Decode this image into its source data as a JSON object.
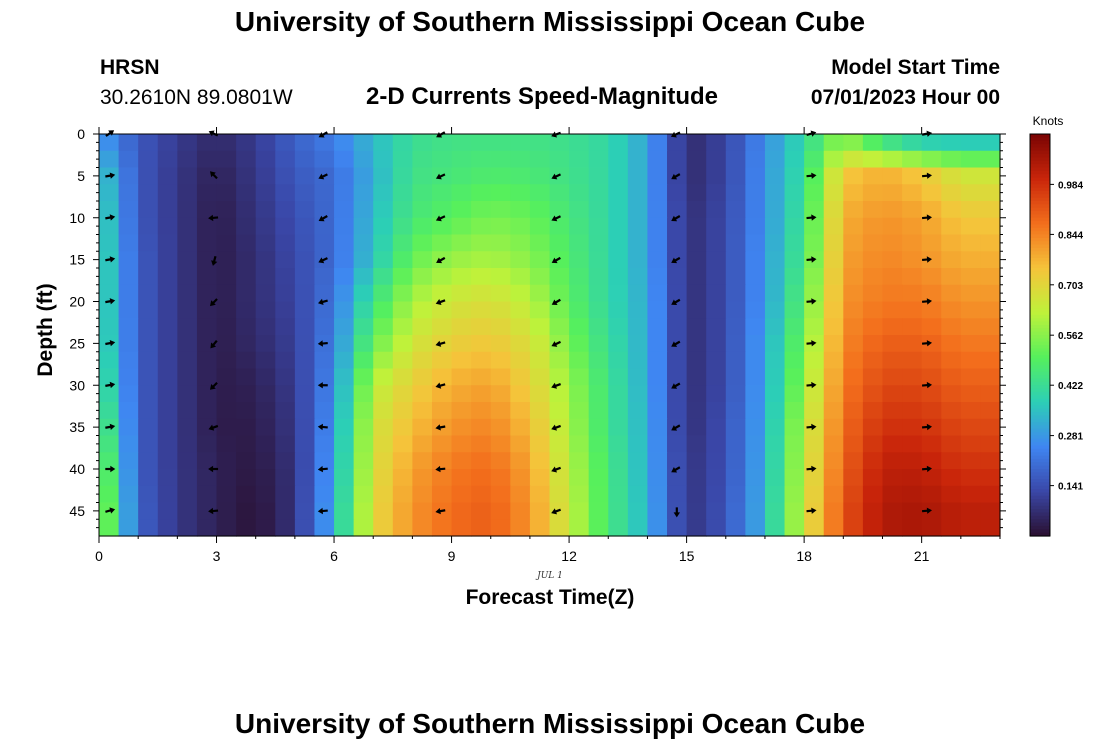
{
  "header": {
    "title": "University of Southern Mississippi Ocean Cube",
    "station": "HRSN",
    "coords": "30.2610N  89.0801W",
    "subtitle": "2-D Currents Speed-Magnitude",
    "model_start_label": "Model Start Time",
    "model_start_value": "07/01/2023 Hour 00"
  },
  "footer": {
    "title": "University of Southern Mississippi Ocean Cube"
  },
  "chart_data": {
    "type": "heatmap",
    "title": "2-D Currents Speed-Magnitude",
    "xlabel": "Forecast Time(Z)",
    "ylabel": "Depth (ft)",
    "date_label": "JUL 1",
    "xlim": [
      0,
      23
    ],
    "ylim": [
      48,
      0
    ],
    "x_ticks": [
      0,
      3,
      6,
      9,
      12,
      15,
      18,
      21
    ],
    "y_ticks": [
      0,
      5,
      10,
      15,
      20,
      25,
      30,
      35,
      40,
      45
    ],
    "colorbar": {
      "unit": "Knots",
      "range": [
        0,
        1.125
      ],
      "ticks": [
        0.141,
        0.281,
        0.422,
        0.562,
        0.703,
        0.844,
        0.984
      ],
      "colors": [
        "#2a0f2f",
        "#3a47a8",
        "#3f86f2",
        "#2ccfb6",
        "#56f05c",
        "#bff23a",
        "#f5c33a",
        "#f36e1c",
        "#c9250a",
        "#7a0403"
      ]
    },
    "hours": [
      0,
      1,
      2,
      3,
      4,
      5,
      6,
      7,
      8,
      9,
      10,
      11,
      12,
      13,
      14,
      15,
      16,
      17,
      18,
      19,
      20,
      21,
      22
    ],
    "depths": [
      0,
      5,
      10,
      15,
      20,
      25,
      30,
      35,
      40,
      45
    ],
    "speed_knots": [
      [
        0.28,
        0.16,
        0.1,
        0.06,
        0.1,
        0.18,
        0.24,
        0.34,
        0.42,
        0.44,
        0.44,
        0.44,
        0.43,
        0.4,
        0.3,
        0.06,
        0.12,
        0.26,
        0.4,
        0.55,
        0.38,
        0.3,
        0.3
      ],
      [
        0.38,
        0.16,
        0.09,
        0.04,
        0.09,
        0.16,
        0.2,
        0.32,
        0.44,
        0.46,
        0.48,
        0.47,
        0.44,
        0.4,
        0.3,
        0.06,
        0.12,
        0.27,
        0.42,
        0.74,
        0.78,
        0.74,
        0.66
      ],
      [
        0.41,
        0.16,
        0.09,
        0.03,
        0.08,
        0.14,
        0.2,
        0.34,
        0.46,
        0.5,
        0.54,
        0.52,
        0.46,
        0.4,
        0.3,
        0.07,
        0.13,
        0.27,
        0.44,
        0.78,
        0.82,
        0.8,
        0.74
      ],
      [
        0.42,
        0.17,
        0.09,
        0.03,
        0.07,
        0.13,
        0.2,
        0.36,
        0.52,
        0.58,
        0.6,
        0.56,
        0.48,
        0.4,
        0.3,
        0.07,
        0.13,
        0.28,
        0.46,
        0.8,
        0.84,
        0.82,
        0.78
      ],
      [
        0.42,
        0.17,
        0.09,
        0.03,
        0.07,
        0.12,
        0.22,
        0.44,
        0.6,
        0.66,
        0.68,
        0.62,
        0.5,
        0.4,
        0.31,
        0.07,
        0.13,
        0.28,
        0.5,
        0.82,
        0.86,
        0.86,
        0.82
      ],
      [
        0.43,
        0.17,
        0.09,
        0.03,
        0.06,
        0.11,
        0.24,
        0.52,
        0.66,
        0.72,
        0.74,
        0.68,
        0.54,
        0.42,
        0.31,
        0.07,
        0.13,
        0.3,
        0.54,
        0.84,
        0.9,
        0.9,
        0.86
      ],
      [
        0.46,
        0.17,
        0.09,
        0.03,
        0.04,
        0.1,
        0.26,
        0.62,
        0.72,
        0.78,
        0.8,
        0.72,
        0.58,
        0.44,
        0.31,
        0.07,
        0.13,
        0.3,
        0.58,
        0.86,
        0.94,
        0.94,
        0.9
      ],
      [
        0.52,
        0.17,
        0.09,
        0.03,
        0.03,
        0.09,
        0.28,
        0.66,
        0.76,
        0.82,
        0.84,
        0.76,
        0.6,
        0.44,
        0.32,
        0.07,
        0.14,
        0.31,
        0.62,
        0.88,
        0.98,
        0.98,
        0.94
      ],
      [
        0.58,
        0.17,
        0.09,
        0.04,
        0.02,
        0.08,
        0.3,
        0.68,
        0.8,
        0.86,
        0.88,
        0.8,
        0.62,
        0.46,
        0.32,
        0.08,
        0.14,
        0.32,
        0.64,
        0.9,
        1.02,
        1.02,
        0.98
      ],
      [
        0.62,
        0.18,
        0.09,
        0.04,
        0.01,
        0.08,
        0.32,
        0.7,
        0.82,
        0.88,
        0.9,
        0.82,
        0.64,
        0.46,
        0.33,
        0.08,
        0.15,
        0.33,
        0.66,
        0.92,
        1.04,
        1.05,
        1.02
      ]
    ],
    "vector_hours": [
      0.25,
      2.95,
      5.75,
      8.75,
      11.7,
      14.75,
      18.15,
      21.1
    ],
    "vector_dir_deg": [
      [
        35,
        155,
        210,
        210,
        200,
        205,
        15,
        10
      ],
      [
        10,
        135,
        205,
        205,
        205,
        210,
        5,
        5
      ],
      [
        10,
        185,
        210,
        205,
        205,
        210,
        5,
        5
      ],
      [
        10,
        255,
        205,
        210,
        210,
        210,
        5,
        5
      ],
      [
        10,
        225,
        195,
        200,
        210,
        210,
        5,
        5
      ],
      [
        10,
        230,
        185,
        195,
        205,
        210,
        5,
        5
      ],
      [
        10,
        225,
        180,
        195,
        200,
        210,
        5,
        5
      ],
      [
        10,
        200,
        175,
        190,
        200,
        210,
        5,
        5
      ],
      [
        0,
        180,
        185,
        185,
        200,
        210,
        5,
        5
      ],
      [
        15,
        185,
        185,
        190,
        200,
        270,
        5,
        5
      ]
    ]
  }
}
